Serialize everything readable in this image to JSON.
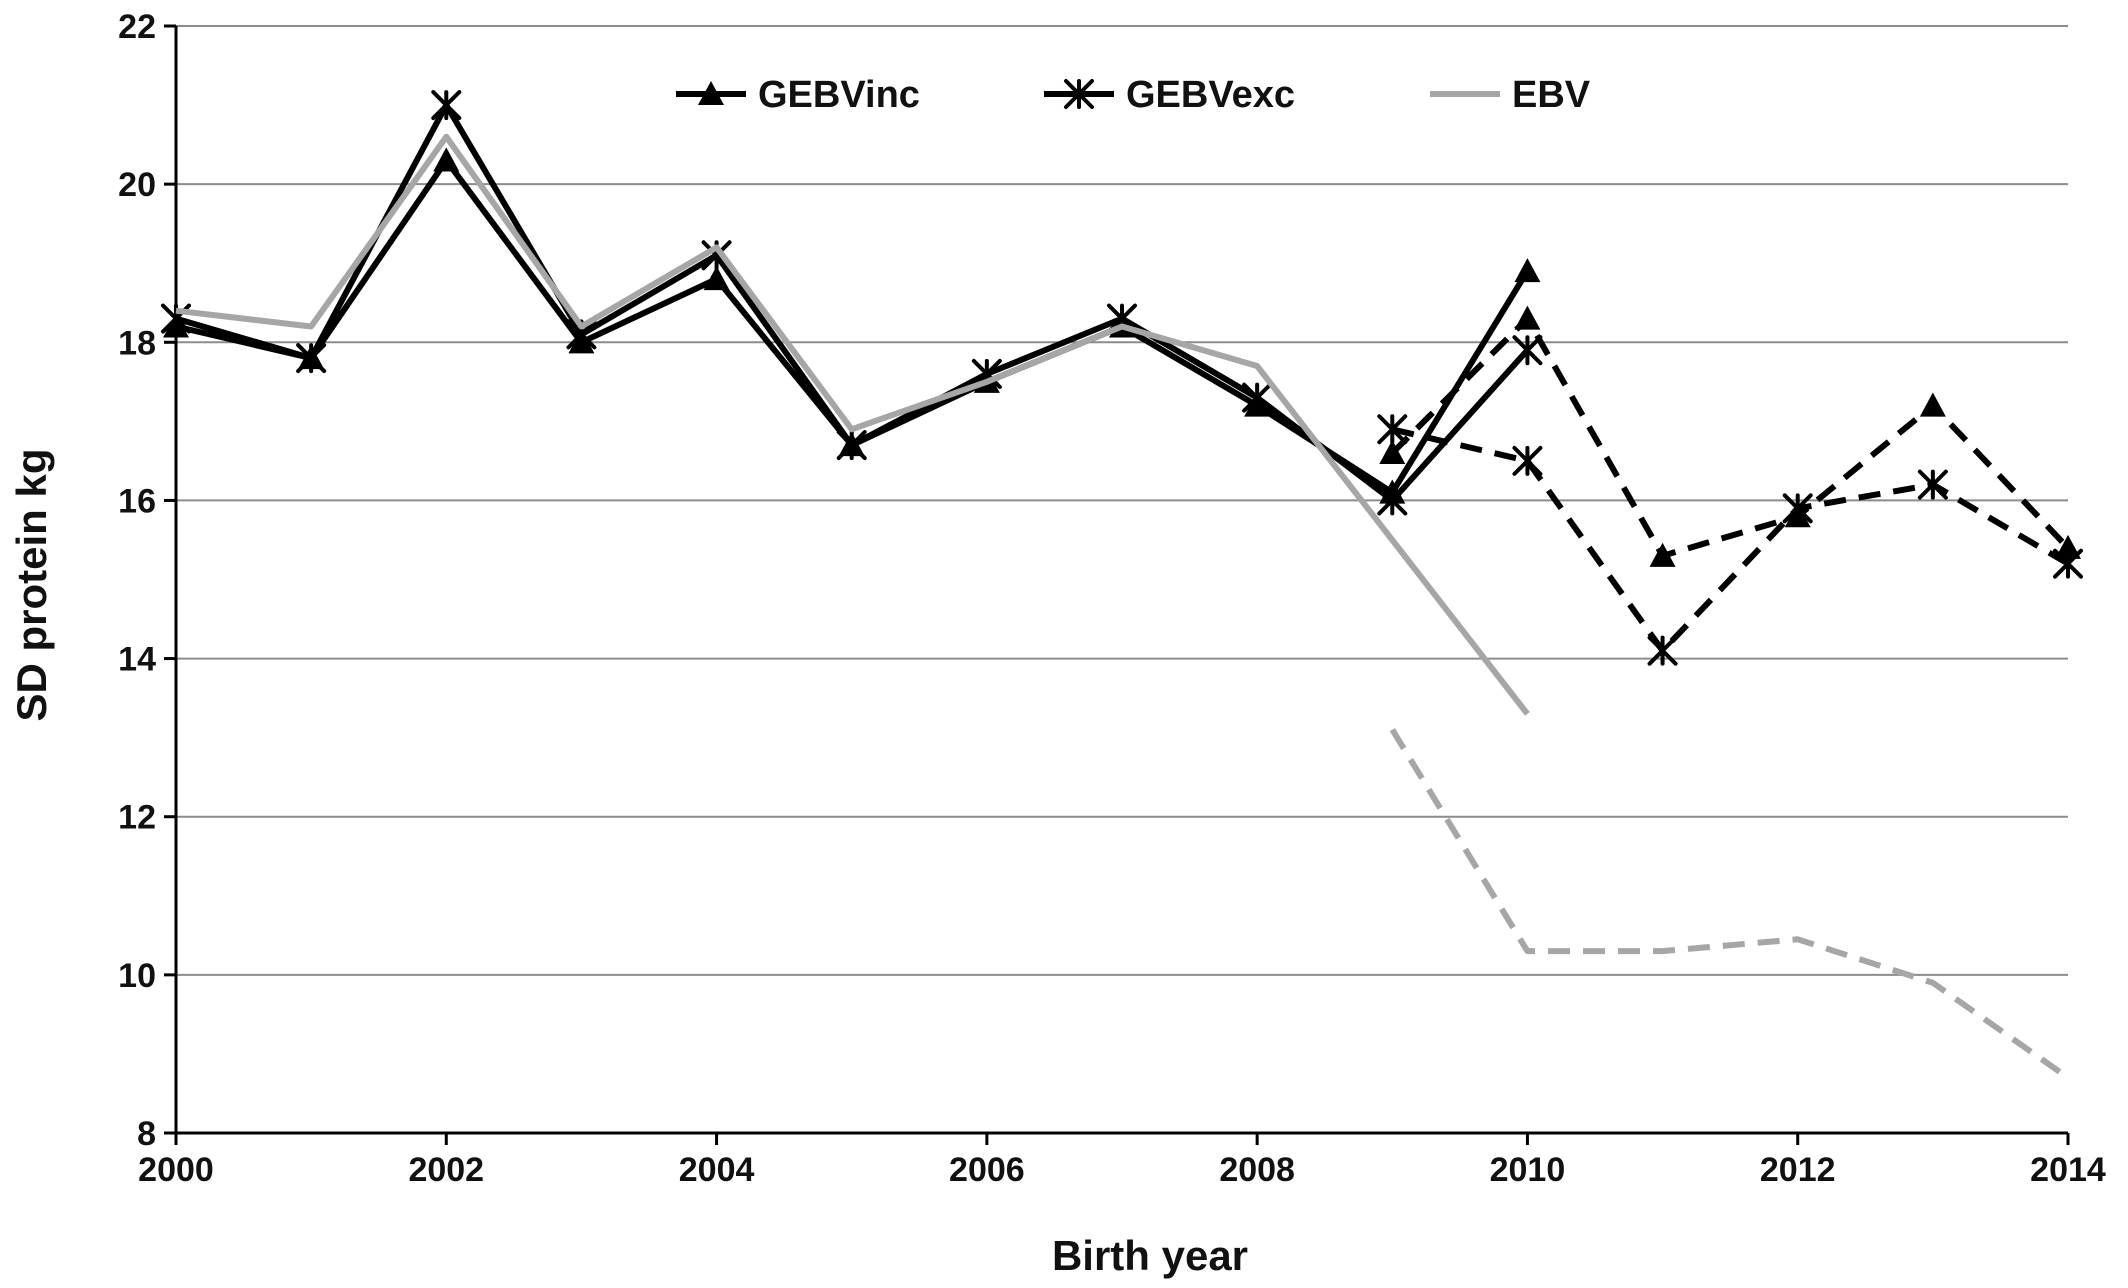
{
  "chart_data": {
    "type": "line",
    "xlabel": "Birth year",
    "ylabel": "SD protein kg",
    "xlim": [
      2000,
      2014
    ],
    "ylim": [
      8,
      22
    ],
    "x_ticks": [
      2000,
      2002,
      2004,
      2006,
      2008,
      2010,
      2012,
      2014
    ],
    "y_ticks": [
      8,
      10,
      12,
      14,
      16,
      18,
      20,
      22
    ],
    "grid": "horizontal",
    "legend_position": "top",
    "legend": [
      {
        "name": "GEBVinc",
        "marker": "triangle",
        "color": "#000000"
      },
      {
        "name": "GEBVexc",
        "marker": "star",
        "color": "#000000"
      },
      {
        "name": "EBV",
        "marker": "none",
        "color": "#a6a6a6"
      }
    ],
    "series": [
      {
        "name": "GEBVinc",
        "group": "GEBVinc",
        "color": "#000000",
        "dash": "solid",
        "marker": "triangle",
        "x": [
          2000,
          2001,
          2002,
          2003,
          2004,
          2005,
          2006,
          2007,
          2008,
          2009,
          2010
        ],
        "y": [
          18.2,
          17.8,
          20.3,
          18.0,
          18.8,
          16.7,
          17.5,
          18.2,
          17.2,
          16.1,
          18.9
        ]
      },
      {
        "name": "GEBVinc",
        "group": "GEBVinc",
        "color": "#000000",
        "dash": "dashed",
        "marker": "triangle",
        "x": [
          2009,
          2010,
          2011,
          2012,
          2013,
          2014
        ],
        "y": [
          16.6,
          18.3,
          15.3,
          15.8,
          17.2,
          15.4
        ]
      },
      {
        "name": "GEBVexc",
        "group": "GEBVexc",
        "color": "#000000",
        "dash": "solid",
        "marker": "star",
        "x": [
          2000,
          2001,
          2002,
          2003,
          2004,
          2005,
          2006,
          2007,
          2008,
          2009,
          2010
        ],
        "y": [
          18.3,
          17.8,
          21.0,
          18.1,
          19.1,
          16.7,
          17.6,
          18.3,
          17.3,
          16.0,
          17.9
        ]
      },
      {
        "name": "GEBVexc",
        "group": "GEBVexc",
        "color": "#000000",
        "dash": "dashed",
        "marker": "star",
        "x": [
          2009,
          2010,
          2011,
          2012,
          2013,
          2014
        ],
        "y": [
          16.9,
          16.5,
          14.1,
          15.9,
          16.2,
          15.2
        ]
      },
      {
        "name": "EBV",
        "group": "EBV",
        "color": "#a6a6a6",
        "dash": "solid",
        "marker": "none",
        "x": [
          2000,
          2001,
          2002,
          2003,
          2004,
          2005,
          2006,
          2007,
          2008,
          2009,
          2010
        ],
        "y": [
          18.4,
          18.2,
          20.6,
          18.2,
          19.2,
          16.9,
          17.5,
          18.2,
          17.7,
          15.5,
          13.3
        ]
      },
      {
        "name": "EBV",
        "group": "EBV",
        "color": "#a6a6a6",
        "dash": "dashed",
        "marker": "none",
        "x": [
          2009,
          2010,
          2011,
          2012,
          2013,
          2014
        ],
        "y": [
          13.1,
          10.3,
          10.3,
          10.45,
          9.9,
          8.7
        ]
      }
    ]
  }
}
